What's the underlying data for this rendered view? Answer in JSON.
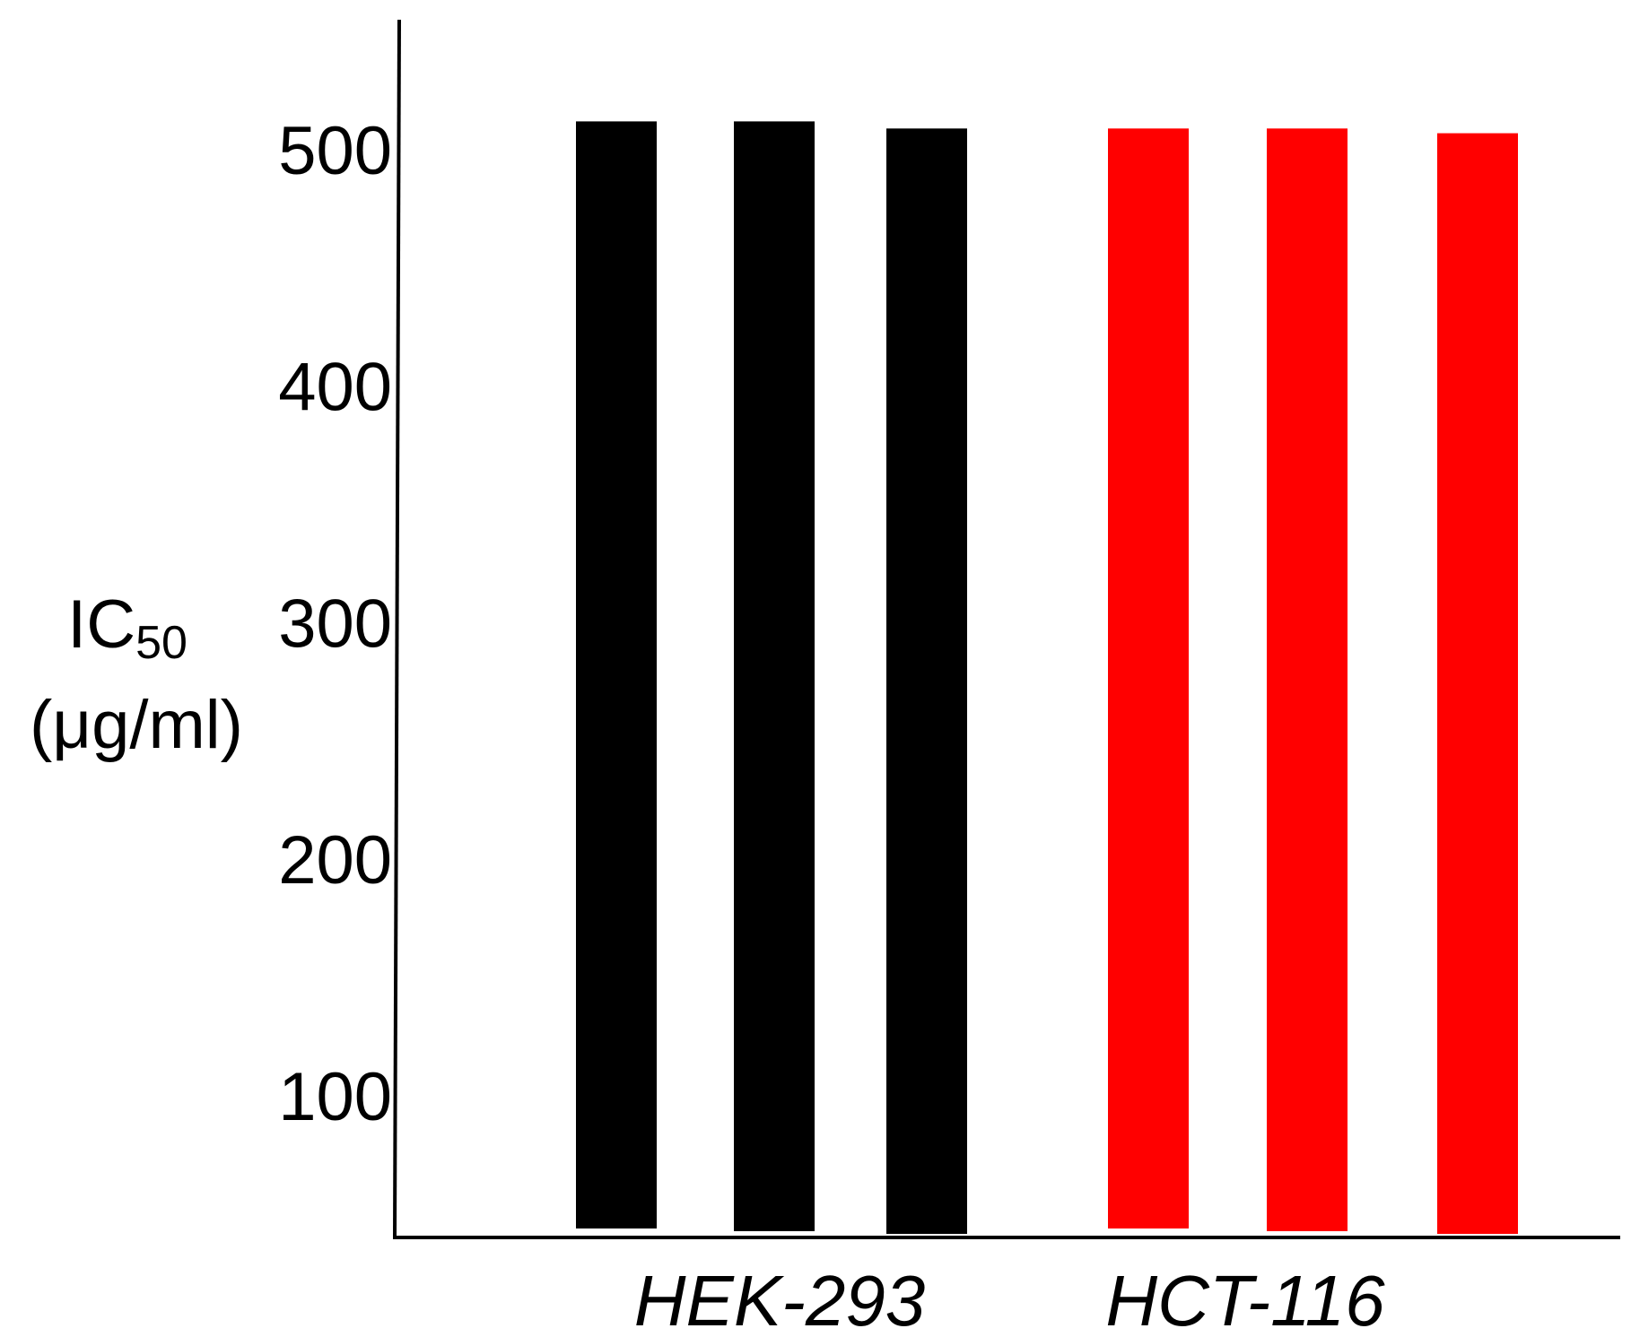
{
  "chart_data": {
    "type": "bar",
    "title": "",
    "xlabel": "",
    "ylabel": {
      "main": "IC",
      "subscript": "50",
      "unit": "(μg/ml)"
    },
    "ylim": [
      40,
      555
    ],
    "yticks": [
      100,
      200,
      300,
      400,
      500
    ],
    "grid": false,
    "groups": [
      {
        "name": "HEK-293",
        "color": "#000000",
        "values": [
          512,
          512,
          509
        ]
      },
      {
        "name": "HCT-116",
        "color": "#ff0000",
        "values": [
          509,
          509,
          507
        ]
      }
    ]
  }
}
